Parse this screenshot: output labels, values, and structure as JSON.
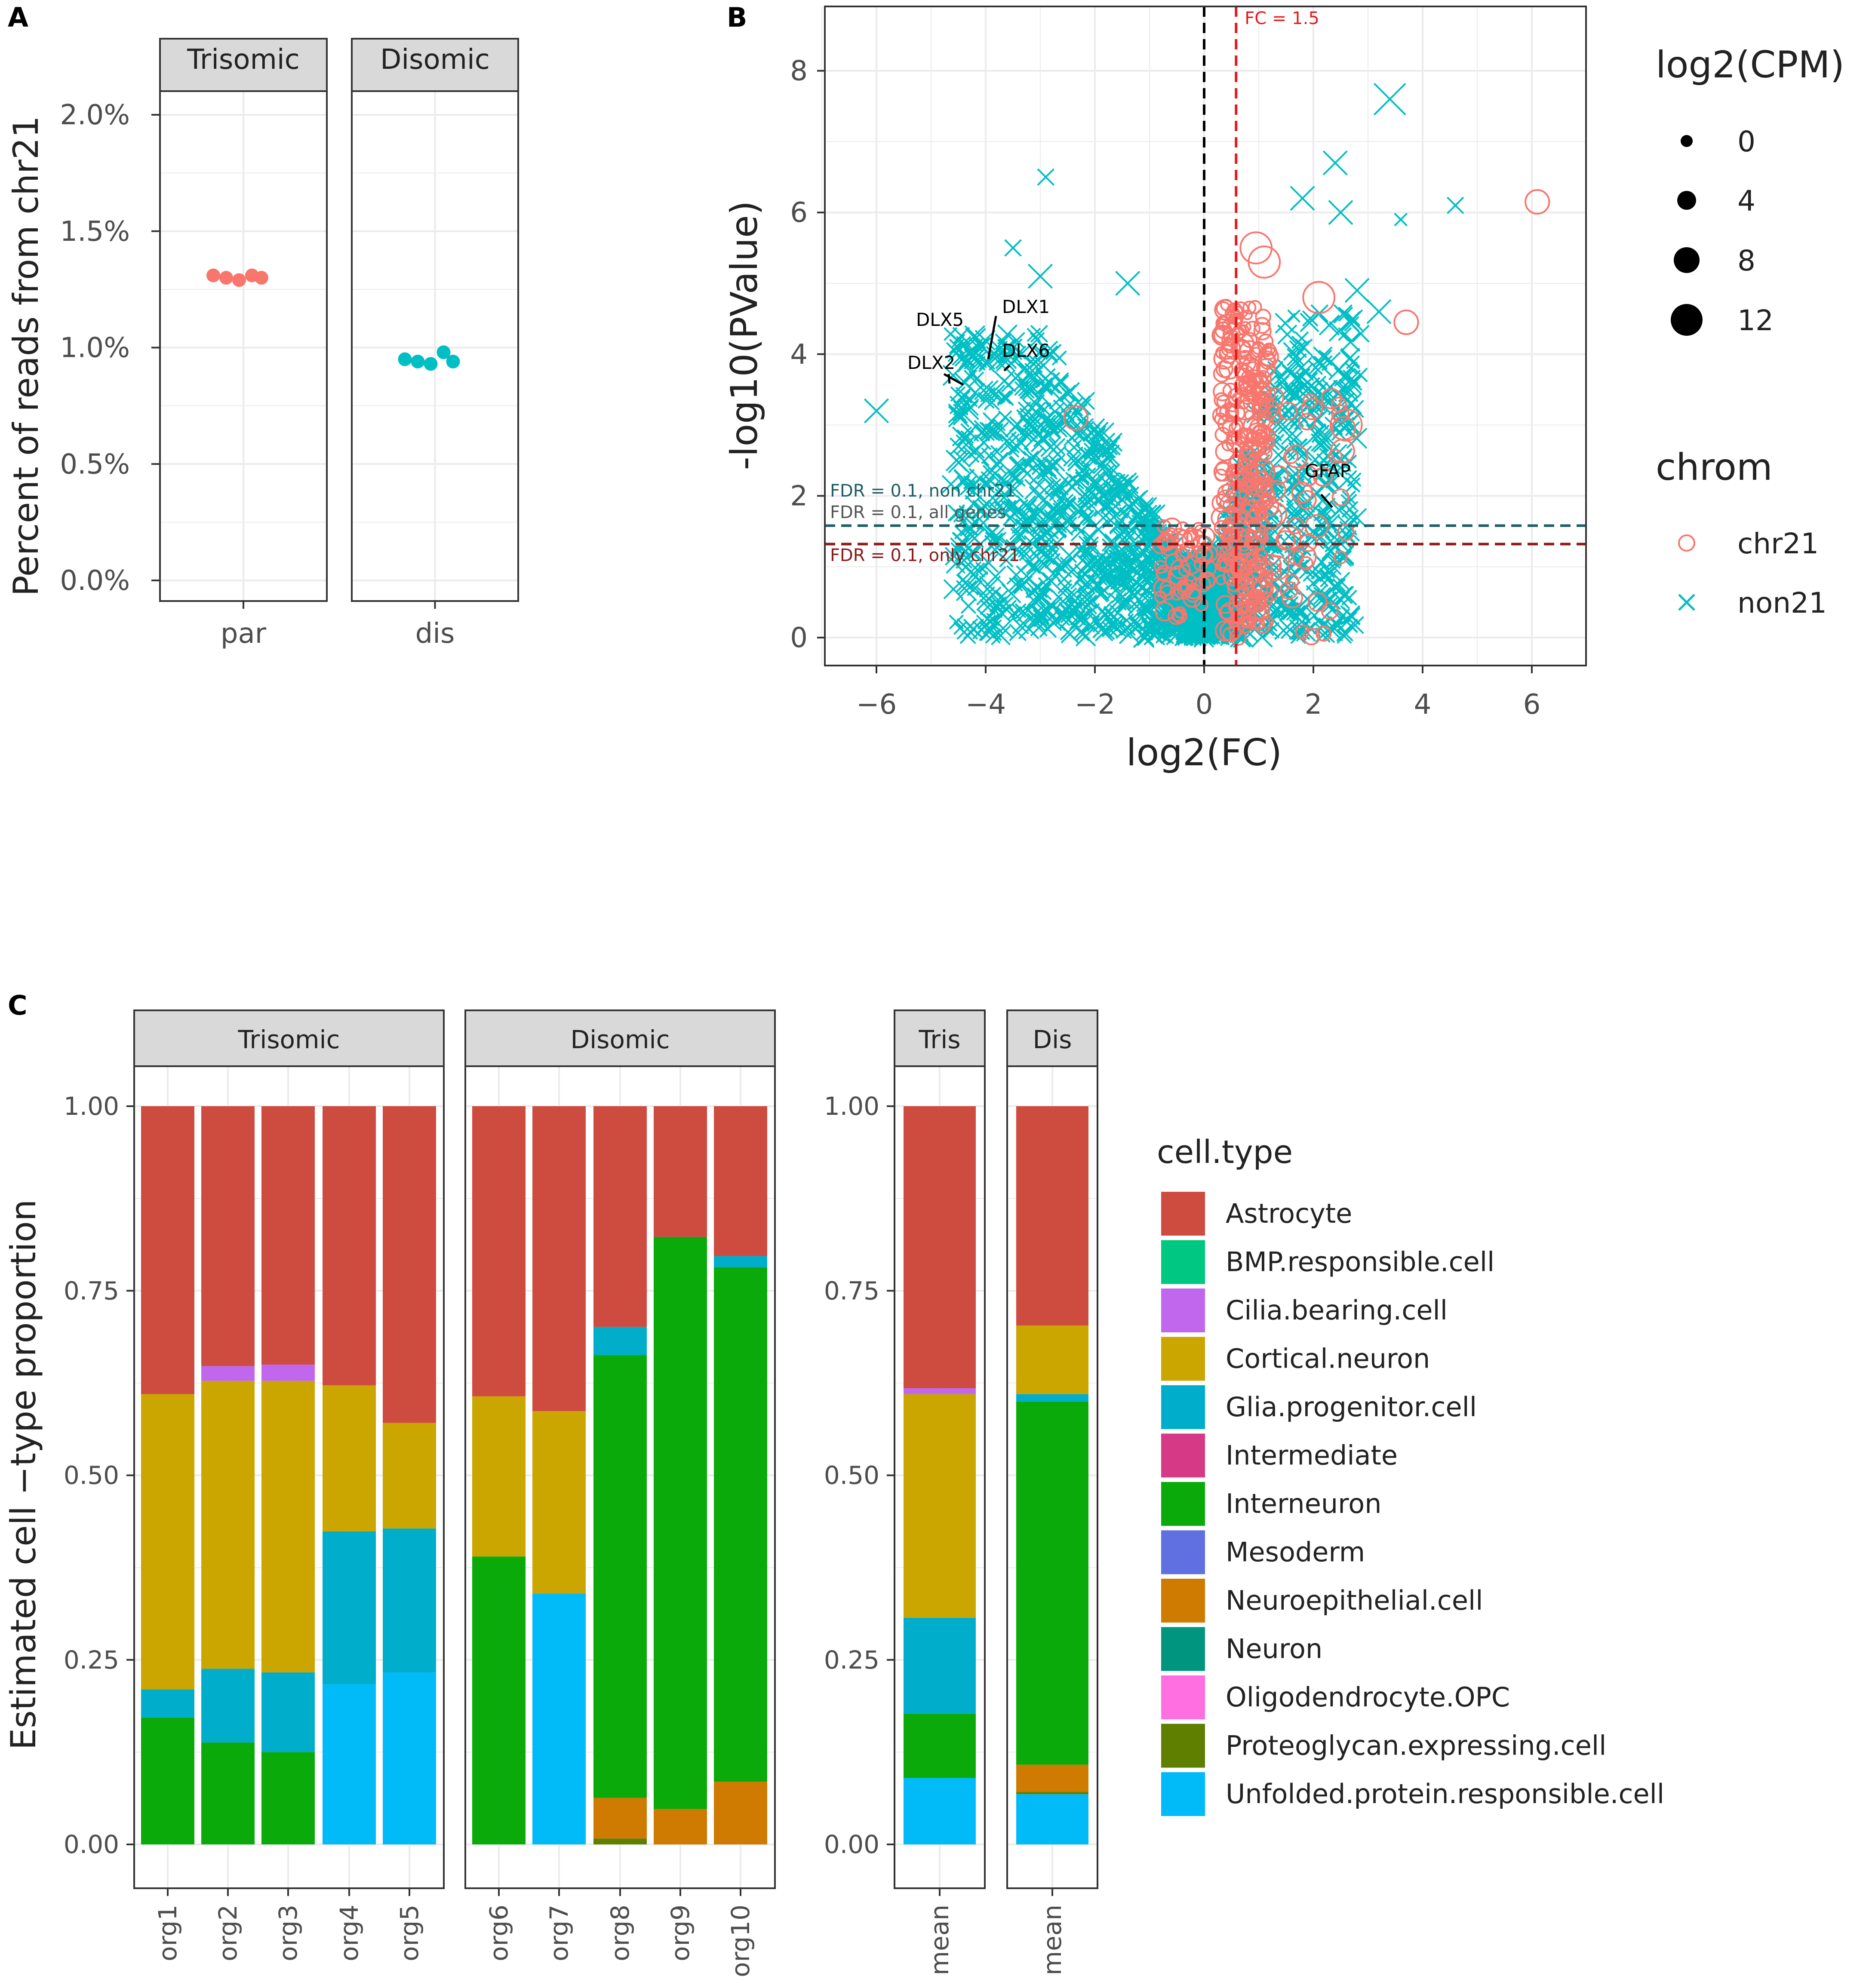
{
  "colors": {
    "trisomic": "#F8766D",
    "disomic": "#00BFC4",
    "grid": "#EBEBEB",
    "strip": "#D9D9D9",
    "fc_line": "#E41A1C",
    "fdr_non21": "#1E5D65",
    "fdr_chr21": "#8B1A1A"
  },
  "chart_data": [
    {
      "panel": "A",
      "type": "scatter",
      "facets": [
        "Trisomic",
        "Disomic"
      ],
      "categories": [
        "par",
        "dis"
      ],
      "ylabel": "Percent of reads from chr21",
      "xlabel": "",
      "ylim": [
        0,
        2.0
      ],
      "yticks": [
        "0.0%",
        "0.5%",
        "1.0%",
        "1.5%",
        "2.0%"
      ],
      "series": [
        {
          "name": "Trisomic",
          "category": "par",
          "values": [
            1.31,
            1.3,
            1.29,
            1.31,
            1.3
          ]
        },
        {
          "name": "Disomic",
          "category": "dis",
          "values": [
            0.95,
            0.94,
            0.93,
            0.98,
            0.94
          ]
        }
      ]
    },
    {
      "panel": "B",
      "type": "scatter",
      "xlabel": "log2(FC)",
      "ylabel": "-log10(PValue)",
      "xlim": [
        -7,
        7
      ],
      "ylim": [
        0,
        8.8
      ],
      "xticks": [
        "−6",
        "−4",
        "−2",
        "0",
        "2",
        "4",
        "6"
      ],
      "yticks": [
        "0",
        "2",
        "4",
        "6",
        "8"
      ],
      "reference_lines": [
        {
          "label": "FC = 1.5",
          "axis": "x",
          "value": 0.585
        },
        {
          "label": "FDR = 0.1, non chr21",
          "axis": "y",
          "value": 1.58
        },
        {
          "label": "FDR = 0.1, all genes",
          "axis": "y",
          "value": 1.58
        },
        {
          "label": "FDR = 0.1, only chr21",
          "axis": "y",
          "value": 1.32
        }
      ],
      "gene_labels": [
        {
          "gene": "DLX5",
          "x": -4.3,
          "y": 3.6
        },
        {
          "gene": "DLX1",
          "x": -4.0,
          "y": 3.9
        },
        {
          "gene": "DLX6",
          "x": -3.7,
          "y": 3.75
        },
        {
          "gene": "DLX2",
          "x": -4.7,
          "y": 3.5
        },
        {
          "gene": "GFAP",
          "x": 2.35,
          "y": 1.65
        }
      ],
      "legend_size": {
        "title": "log2(CPM)",
        "values": [
          "0",
          "4",
          "8",
          "12"
        ]
      },
      "legend_chrom": {
        "title": "chrom",
        "values": [
          "chr21",
          "non21"
        ]
      },
      "highlight_points": [
        {
          "chrom": "non21",
          "x": 3.4,
          "y": 7.6,
          "cpm": 12
        },
        {
          "chrom": "non21",
          "x": 2.4,
          "y": 6.7,
          "cpm": 8
        },
        {
          "chrom": "non21",
          "x": -2.9,
          "y": 6.5,
          "cpm": 4
        },
        {
          "chrom": "non21",
          "x": 4.6,
          "y": 6.1,
          "cpm": 4
        },
        {
          "chrom": "non21",
          "x": 1.8,
          "y": 6.2,
          "cpm": 8
        },
        {
          "chrom": "non21",
          "x": 2.5,
          "y": 6.0,
          "cpm": 8
        },
        {
          "chrom": "non21",
          "x": 3.6,
          "y": 5.9,
          "cpm": 2
        },
        {
          "chrom": "non21",
          "x": -3.5,
          "y": 5.5,
          "cpm": 4
        },
        {
          "chrom": "non21",
          "x": -3.0,
          "y": 5.1,
          "cpm": 8
        },
        {
          "chrom": "non21",
          "x": -1.4,
          "y": 5.0,
          "cpm": 8
        },
        {
          "chrom": "non21",
          "x": -6.0,
          "y": 3.2,
          "cpm": 8
        },
        {
          "chrom": "non21",
          "x": 2.8,
          "y": 4.9,
          "cpm": 8
        },
        {
          "chrom": "non21",
          "x": 3.2,
          "y": 4.6,
          "cpm": 8
        },
        {
          "chrom": "chr21",
          "x": 6.1,
          "y": 6.15,
          "cpm": 8
        },
        {
          "chrom": "chr21",
          "x": 3.7,
          "y": 4.45,
          "cpm": 8
        },
        {
          "chrom": "chr21",
          "x": 0.95,
          "y": 5.5,
          "cpm": 12
        },
        {
          "chrom": "chr21",
          "x": 1.1,
          "y": 5.3,
          "cpm": 12
        },
        {
          "chrom": "chr21",
          "x": 2.1,
          "y": 4.8,
          "cpm": 12
        },
        {
          "chrom": "chr21",
          "x": 2.6,
          "y": 3.0,
          "cpm": 12
        },
        {
          "chrom": "chr21",
          "x": -2.35,
          "y": 3.1,
          "cpm": 8
        }
      ]
    },
    {
      "panel": "C",
      "type": "bar",
      "stacked": true,
      "ylabel": "Estimated cell  −type proportion",
      "xlabel": "",
      "ylim": [
        0,
        1
      ],
      "yticks": [
        "0.00",
        "0.25",
        "0.50",
        "0.75",
        "1.00"
      ],
      "legend_title": "cell.type",
      "cell_types": [
        {
          "name": "Astrocyte",
          "color": "#CD4B3F"
        },
        {
          "name": "BMP.responsible.cell",
          "color": "#00C781"
        },
        {
          "name": "Cilia.bearing.cell",
          "color": "#C067EE"
        },
        {
          "name": "Cortical.neuron",
          "color": "#CBA500"
        },
        {
          "name": "Glia.progenitor.cell",
          "color": "#00AECB"
        },
        {
          "name": "Intermediate",
          "color": "#D63A86"
        },
        {
          "name": "Interneuron",
          "color": "#0AAA0A"
        },
        {
          "name": "Mesoderm",
          "color": "#6070E0"
        },
        {
          "name": "Neuroepithelial.cell",
          "color": "#CF7A00"
        },
        {
          "name": "Neuron",
          "color": "#00957F"
        },
        {
          "name": "Oligodendrocyte.OPC",
          "color": "#FF6FE1"
        },
        {
          "name": "Proteoglycan.expressing.cell",
          "color": "#5E7F00"
        },
        {
          "name": "Unfolded.protein.responsible.cell",
          "color": "#00BBF8"
        }
      ],
      "facets": [
        {
          "title": "Trisomic",
          "bars": [
            {
              "category": "org1",
              "values": {
                "Interneuron": 0.172,
                "Glia.progenitor.cell": 0.038,
                "Cortical.neuron": 0.4,
                "Astrocyte": 0.39
              }
            },
            {
              "category": "org2",
              "values": {
                "Interneuron": 0.138,
                "Glia.progenitor.cell": 0.1,
                "Cortical.neuron": 0.39,
                "Cilia.bearing.cell": 0.02,
                "Astrocyte": 0.352
              }
            },
            {
              "category": "org3",
              "values": {
                "Interneuron": 0.125,
                "Glia.progenitor.cell": 0.108,
                "Cortical.neuron": 0.395,
                "Cilia.bearing.cell": 0.022,
                "Astrocyte": 0.35
              }
            },
            {
              "category": "org4",
              "values": {
                "Unfolded.protein.responsible.cell": 0.217,
                "Glia.progenitor.cell": 0.207,
                "Cortical.neuron": 0.198,
                "Astrocyte": 0.378
              }
            },
            {
              "category": "org5",
              "values": {
                "Unfolded.protein.responsible.cell": 0.233,
                "Glia.progenitor.cell": 0.195,
                "Cortical.neuron": 0.143,
                "Astrocyte": 0.429
              }
            }
          ]
        },
        {
          "title": "Disomic",
          "bars": [
            {
              "category": "org6",
              "values": {
                "Interneuron": 0.39,
                "Cortical.neuron": 0.217,
                "Astrocyte": 0.393
              }
            },
            {
              "category": "org7",
              "values": {
                "Unfolded.protein.responsible.cell": 0.34,
                "Cortical.neuron": 0.247,
                "Astrocyte": 0.413
              }
            },
            {
              "category": "org8",
              "values": {
                "Proteoglycan.expressing.cell": 0.008,
                "Neuroepithelial.cell": 0.055,
                "Interneuron": 0.6,
                "Glia.progenitor.cell": 0.038,
                "Astrocyte": 0.299
              }
            },
            {
              "category": "org9",
              "values": {
                "Neuroepithelial.cell": 0.048,
                "Interneuron": 0.775,
                "Astrocyte": 0.177
              }
            },
            {
              "category": "org10",
              "values": {
                "Neuroepithelial.cell": 0.085,
                "Interneuron": 0.697,
                "Glia.progenitor.cell": 0.015,
                "Astrocyte": 0.203
              }
            }
          ]
        },
        {
          "title": "Tris",
          "bars": [
            {
              "category": "mean",
              "values": {
                "Unfolded.protein.responsible.cell": 0.09,
                "Interneuron": 0.087,
                "Glia.progenitor.cell": 0.13,
                "Cortical.neuron": 0.303,
                "Cilia.bearing.cell": 0.008,
                "Astrocyte": 0.382
              }
            }
          ]
        },
        {
          "title": "Dis",
          "bars": [
            {
              "category": "mean",
              "values": {
                "Unfolded.protein.responsible.cell": 0.068,
                "Proteoglycan.expressing.cell": 0.003,
                "Neuroepithelial.cell": 0.037,
                "Interneuron": 0.492,
                "Glia.progenitor.cell": 0.01,
                "Cortical.neuron": 0.093,
                "Astrocyte": 0.297
              }
            }
          ]
        }
      ]
    }
  ],
  "panel_labels": {
    "a": "A",
    "b": "B",
    "c": "C"
  }
}
